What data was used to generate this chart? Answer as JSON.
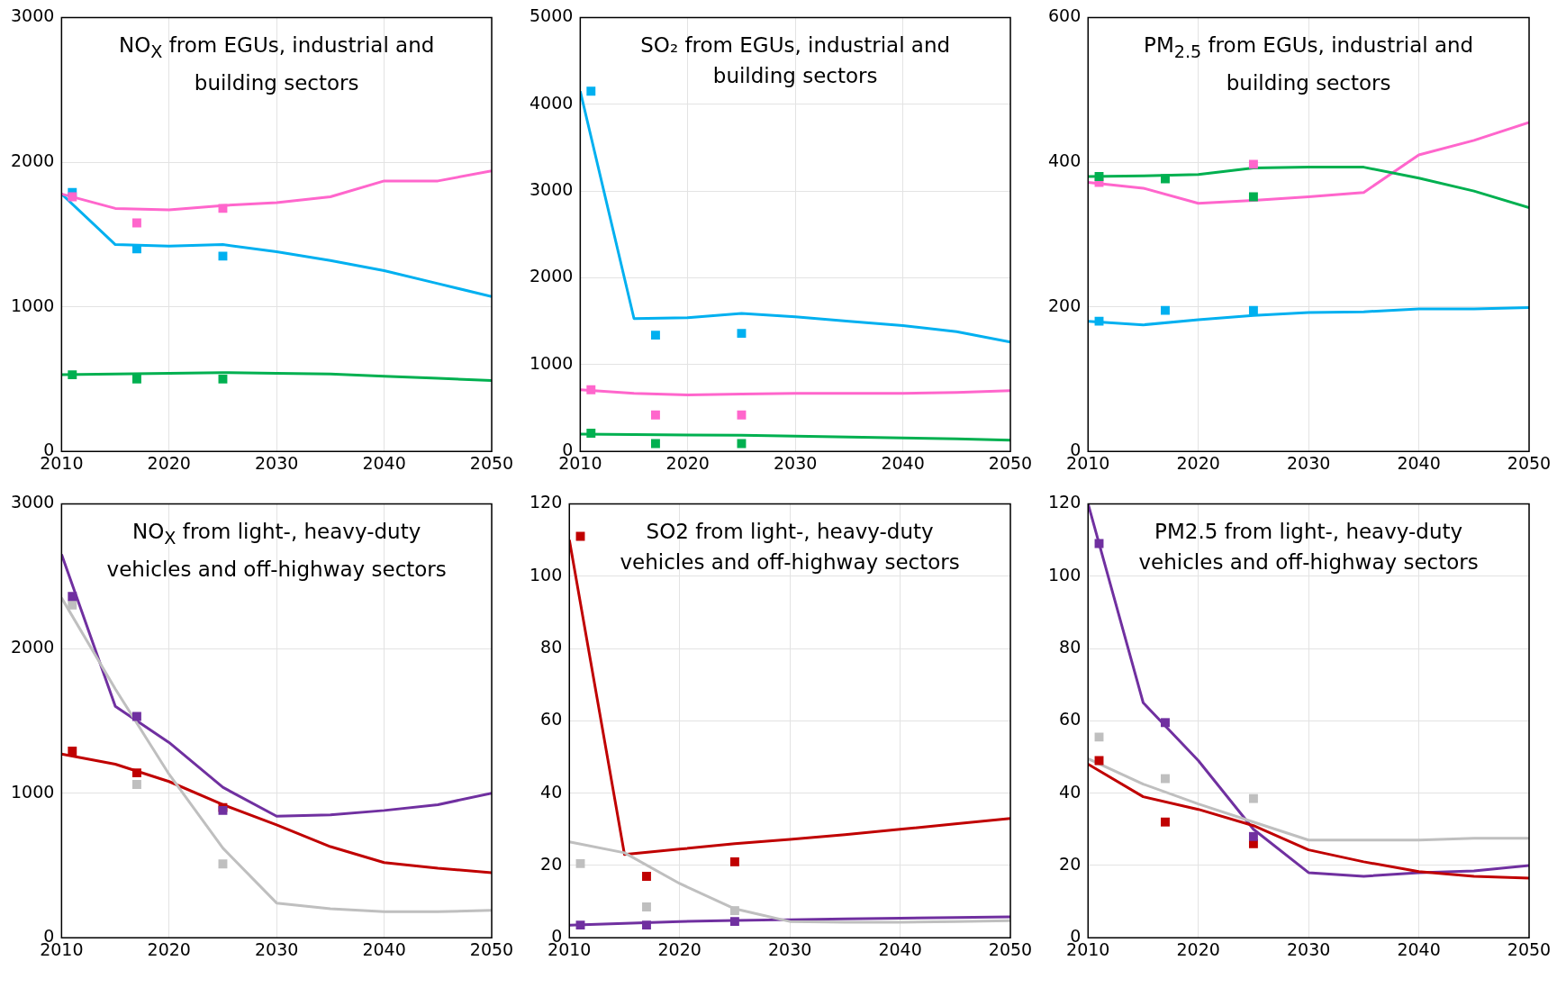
{
  "chart_data": [
    {
      "type": "line",
      "title": "NO$_{X}$ from EGUs, industrial and building sectors",
      "xlim": [
        2010,
        2050
      ],
      "xticks": [
        2010,
        2020,
        2030,
        2040,
        2050
      ],
      "ylim": [
        0,
        3000
      ],
      "yticks": [
        0,
        1000,
        2000,
        3000
      ],
      "grid": true,
      "marker": "none",
      "x": [
        2010,
        2015,
        2020,
        2025,
        2030,
        2035,
        2040,
        2045,
        2050
      ],
      "series": [
        {
          "type": "line",
          "color": "#00b0f0",
          "values": [
            1780,
            1430,
            1420,
            1430,
            1380,
            1320,
            1250,
            1160,
            1070
          ]
        },
        {
          "type": "line",
          "color": "#ff66cc",
          "values": [
            1780,
            1680,
            1670,
            1700,
            1720,
            1760,
            1870,
            1870,
            1940
          ]
        },
        {
          "type": "line",
          "color": "#00b050",
          "values": [
            530,
            535,
            540,
            545,
            540,
            535,
            520,
            505,
            490
          ]
        },
        {
          "type": "scatter",
          "marker": "square",
          "color": "#00b0f0",
          "x": [
            2011,
            2017,
            2025
          ],
          "values": [
            1790,
            1400,
            1350
          ]
        },
        {
          "type": "scatter",
          "marker": "square",
          "color": "#ff66cc",
          "x": [
            2011,
            2017,
            2025
          ],
          "values": [
            1760,
            1580,
            1680
          ]
        },
        {
          "type": "scatter",
          "marker": "square",
          "color": "#00b050",
          "x": [
            2011,
            2017,
            2025
          ],
          "values": [
            530,
            500,
            500
          ]
        }
      ]
    },
    {
      "type": "line",
      "title": "SO₂ from EGUs, industrial and building sectors",
      "xlim": [
        2010,
        2050
      ],
      "xticks": [
        2010,
        2020,
        2030,
        2040,
        2050
      ],
      "ylim": [
        0,
        5000
      ],
      "yticks": [
        0,
        1000,
        2000,
        3000,
        4000,
        5000
      ],
      "grid": true,
      "marker": "none",
      "x": [
        2010,
        2015,
        2020,
        2025,
        2030,
        2035,
        2040,
        2045,
        2050
      ],
      "series": [
        {
          "type": "line",
          "color": "#00b0f0",
          "values": [
            4150,
            1530,
            1540,
            1590,
            1550,
            1500,
            1450,
            1380,
            1260
          ]
        },
        {
          "type": "line",
          "color": "#ff66cc",
          "values": [
            710,
            670,
            650,
            660,
            670,
            670,
            670,
            680,
            700
          ]
        },
        {
          "type": "line",
          "color": "#00b050",
          "values": [
            200,
            195,
            190,
            185,
            175,
            165,
            155,
            145,
            130
          ]
        },
        {
          "type": "scatter",
          "marker": "square",
          "color": "#00b0f0",
          "x": [
            2011,
            2017,
            2025
          ],
          "values": [
            4150,
            1340,
            1360
          ]
        },
        {
          "type": "scatter",
          "marker": "square",
          "color": "#ff66cc",
          "x": [
            2011,
            2017,
            2025
          ],
          "values": [
            710,
            420,
            420
          ]
        },
        {
          "type": "scatter",
          "marker": "square",
          "color": "#00b050",
          "x": [
            2011,
            2017,
            2025
          ],
          "values": [
            210,
            90,
            90
          ]
        }
      ]
    },
    {
      "type": "line",
      "title": "PM$_{2.5}$ from EGUs, industrial and building sectors",
      "xlim": [
        2010,
        2050
      ],
      "xticks": [
        2010,
        2020,
        2030,
        2040,
        2050
      ],
      "ylim": [
        0,
        600
      ],
      "yticks": [
        0,
        200,
        400,
        600
      ],
      "grid": true,
      "marker": "none",
      "x": [
        2010,
        2015,
        2020,
        2025,
        2030,
        2035,
        2040,
        2045,
        2050
      ],
      "series": [
        {
          "type": "line",
          "color": "#00b0f0",
          "values": [
            180,
            175,
            182,
            188,
            192,
            193,
            197,
            197,
            199
          ]
        },
        {
          "type": "line",
          "color": "#ff66cc",
          "values": [
            372,
            364,
            343,
            347,
            352,
            358,
            410,
            430,
            455
          ]
        },
        {
          "type": "line",
          "color": "#00b050",
          "values": [
            380,
            381,
            383,
            392,
            393,
            393,
            378,
            360,
            337
          ]
        },
        {
          "type": "scatter",
          "marker": "square",
          "color": "#00b0f0",
          "x": [
            2011,
            2017,
            2025
          ],
          "values": [
            180,
            195,
            195
          ]
        },
        {
          "type": "scatter",
          "marker": "square",
          "color": "#ff66cc",
          "x": [
            2011,
            2017,
            2025
          ],
          "values": [
            372,
            null,
            397
          ]
        },
        {
          "type": "scatter",
          "marker": "square",
          "color": "#00b050",
          "x": [
            2011,
            2017,
            2025
          ],
          "values": [
            380,
            377,
            352
          ]
        }
      ]
    },
    {
      "type": "line",
      "title": "NO$_{X}$ from light-, heavy-duty vehicles and off-highway sectors",
      "xlim": [
        2010,
        2050
      ],
      "xticks": [
        2010,
        2020,
        2030,
        2040,
        2050
      ],
      "ylim": [
        0,
        3000
      ],
      "yticks": [
        0,
        1000,
        2000,
        3000
      ],
      "grid": true,
      "marker": "none",
      "x": [
        2010,
        2015,
        2020,
        2025,
        2030,
        2035,
        2040,
        2045,
        2050
      ],
      "series": [
        {
          "type": "line",
          "color": "#7030a0",
          "values": [
            2650,
            1600,
            1350,
            1040,
            840,
            850,
            880,
            920,
            1000
          ]
        },
        {
          "type": "line",
          "color": "#c00000",
          "values": [
            1270,
            1200,
            1080,
            920,
            780,
            630,
            520,
            480,
            450
          ]
        },
        {
          "type": "line",
          "color": "#bfbfbf",
          "values": [
            2350,
            1720,
            1130,
            620,
            240,
            200,
            180,
            180,
            190
          ]
        },
        {
          "type": "scatter",
          "marker": "square",
          "color": "#bfbfbf",
          "x": [
            2011,
            2017,
            2025
          ],
          "values": [
            2300,
            1060,
            510
          ]
        },
        {
          "type": "scatter",
          "marker": "square",
          "color": "#c00000",
          "x": [
            2011,
            2017,
            2025
          ],
          "values": [
            1290,
            1140,
            900
          ]
        },
        {
          "type": "scatter",
          "marker": "square",
          "color": "#7030a0",
          "x": [
            2011,
            2017,
            2025
          ],
          "values": [
            2360,
            1530,
            880
          ]
        }
      ]
    },
    {
      "type": "line",
      "title": "SO2 from light-, heavy-duty vehicles and off-highway sectors",
      "xlim": [
        2010,
        2050
      ],
      "xticks": [
        2010,
        2020,
        2030,
        2040,
        2050
      ],
      "ylim": [
        0,
        120
      ],
      "yticks": [
        0,
        20,
        40,
        60,
        80,
        100,
        120
      ],
      "grid": true,
      "marker": "none",
      "x": [
        2010,
        2015,
        2020,
        2025,
        2030,
        2035,
        2040,
        2045,
        2050
      ],
      "series": [
        {
          "type": "line",
          "color": "#7030a0",
          "values": [
            3.5,
            4,
            4.5,
            4.8,
            5,
            5.2,
            5.4,
            5.6,
            5.8
          ]
        },
        {
          "type": "line",
          "color": "#c00000",
          "values": [
            110,
            23,
            24.5,
            26,
            27.2,
            28.5,
            30,
            31.5,
            33
          ]
        },
        {
          "type": "line",
          "color": "#bfbfbf",
          "values": [
            26.5,
            23.5,
            15,
            8,
            4.5,
            4.3,
            4.3,
            4.5,
            4.7
          ]
        },
        {
          "type": "scatter",
          "marker": "square",
          "color": "#bfbfbf",
          "x": [
            2011,
            2017,
            2025
          ],
          "values": [
            20.5,
            8.5,
            7.5
          ]
        },
        {
          "type": "scatter",
          "marker": "square",
          "color": "#c00000",
          "x": [
            2011,
            2017,
            2025
          ],
          "values": [
            111,
            17,
            21
          ]
        },
        {
          "type": "scatter",
          "marker": "square",
          "color": "#7030a0",
          "x": [
            2011,
            2017,
            2025
          ],
          "values": [
            3.5,
            3.5,
            4.5
          ]
        }
      ]
    },
    {
      "type": "line",
      "title": "PM2.5 from light-, heavy-duty vehicles and off-highway sectors",
      "xlim": [
        2010,
        2050
      ],
      "xticks": [
        2010,
        2020,
        2030,
        2040,
        2050
      ],
      "ylim": [
        0,
        120
      ],
      "yticks": [
        0,
        20,
        40,
        60,
        80,
        100,
        120
      ],
      "grid": true,
      "marker": "none",
      "x": [
        2010,
        2015,
        2020,
        2025,
        2030,
        2035,
        2040,
        2045,
        2050
      ],
      "series": [
        {
          "type": "line",
          "color": "#7030a0",
          "values": [
            120,
            65,
            49,
            30,
            18,
            17,
            18,
            18.5,
            20
          ]
        },
        {
          "type": "line",
          "color": "#c00000",
          "values": [
            48,
            39,
            35.5,
            31,
            24.3,
            21,
            18.3,
            17,
            16.5
          ]
        },
        {
          "type": "line",
          "color": "#bfbfbf",
          "values": [
            49.5,
            42.5,
            37,
            32,
            27,
            27,
            27,
            27.5,
            27.5
          ]
        },
        {
          "type": "scatter",
          "marker": "square",
          "color": "#bfbfbf",
          "x": [
            2011,
            2017,
            2025
          ],
          "values": [
            55.5,
            44,
            38.5
          ]
        },
        {
          "type": "scatter",
          "marker": "square",
          "color": "#c00000",
          "x": [
            2011,
            2017,
            2025
          ],
          "values": [
            49,
            32,
            26
          ]
        },
        {
          "type": "scatter",
          "marker": "square",
          "color": "#7030a0",
          "x": [
            2011,
            2017,
            2025
          ],
          "values": [
            109,
            59.5,
            28
          ]
        }
      ]
    }
  ]
}
